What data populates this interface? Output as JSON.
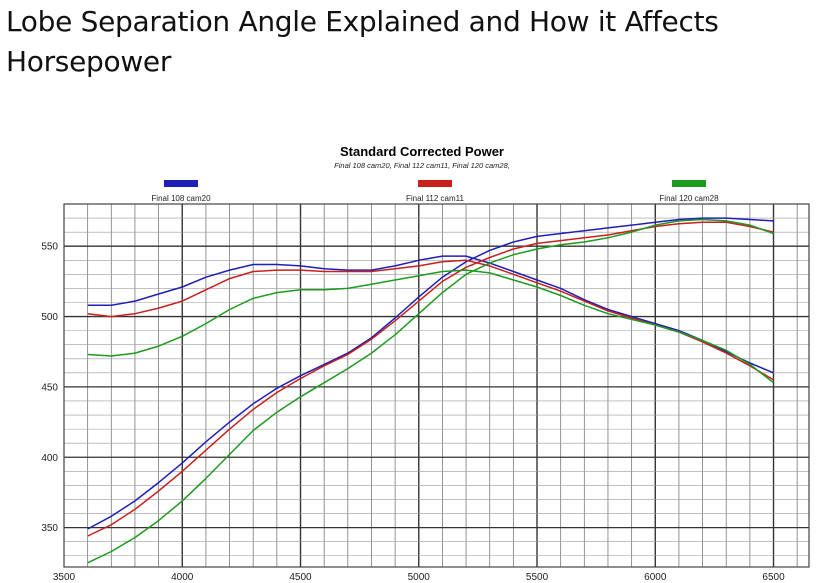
{
  "article": {
    "title": "Lobe Separation Angle Explained and How it Affects Horsepower"
  },
  "chart_data": {
    "type": "line",
    "title": "Standard Corrected Power",
    "subtitle": "Final 108 cam20, Final 112 cam11, Final 120 cam28,",
    "xlabel": "",
    "ylabel": "",
    "xlim": [
      3500,
      6650
    ],
    "ylim": [
      322,
      580
    ],
    "xticks": [
      3500,
      4000,
      4500,
      5000,
      5500,
      6000,
      6500
    ],
    "yticks": [
      350,
      400,
      450,
      500,
      550
    ],
    "grid": true,
    "legend_position": "top",
    "series": [
      {
        "name": "Final 108 cam20",
        "color": "#1f1fb8",
        "x": [
          3600,
          3700,
          3800,
          3900,
          4000,
          4100,
          4200,
          4300,
          4400,
          4500,
          4600,
          4700,
          4800,
          4900,
          5000,
          5100,
          5200,
          5300,
          5400,
          5500,
          5600,
          5700,
          5800,
          5900,
          6000,
          6100,
          6200,
          6300,
          6400,
          6500
        ],
        "torque": [
          508,
          508,
          511,
          516,
          521,
          528,
          533,
          537,
          537,
          536,
          534,
          533,
          533,
          536,
          540,
          543,
          543,
          538,
          532,
          526,
          520,
          512,
          505,
          500,
          495,
          490,
          483,
          475,
          467,
          460
        ],
        "power": [
          349,
          358,
          369,
          382,
          396,
          411,
          425,
          438,
          449,
          458,
          466,
          474,
          485,
          499,
          514,
          528,
          539,
          547,
          553,
          557,
          559,
          561,
          563,
          565,
          567,
          569,
          570,
          570,
          569,
          568
        ]
      },
      {
        "name": "Final 112 cam11",
        "color": "#c8201e",
        "x": [
          3600,
          3700,
          3800,
          3900,
          4000,
          4100,
          4200,
          4300,
          4400,
          4500,
          4600,
          4700,
          4800,
          4900,
          5000,
          5100,
          5200,
          5300,
          5400,
          5500,
          5600,
          5700,
          5800,
          5900,
          6000,
          6100,
          6200,
          6300,
          6400,
          6500
        ],
        "torque": [
          502,
          500,
          502,
          506,
          511,
          519,
          527,
          532,
          533,
          533,
          532,
          532,
          532,
          534,
          536,
          539,
          540,
          536,
          530,
          524,
          518,
          511,
          504,
          499,
          494,
          489,
          482,
          474,
          465,
          455
        ],
        "power": [
          344,
          352,
          363,
          376,
          390,
          405,
          420,
          434,
          446,
          456,
          465,
          473,
          484,
          497,
          511,
          525,
          535,
          542,
          548,
          552,
          554,
          556,
          558,
          561,
          564,
          566,
          567,
          567,
          564,
          560
        ]
      },
      {
        "name": "Final 120 cam28",
        "color": "#1e9a1e",
        "x": [
          3600,
          3700,
          3800,
          3900,
          4000,
          4100,
          4200,
          4300,
          4400,
          4500,
          4600,
          4700,
          4800,
          4900,
          5000,
          5100,
          5200,
          5300,
          5400,
          5500,
          5600,
          5700,
          5800,
          5900,
          6000,
          6100,
          6200,
          6300,
          6400,
          6500
        ],
        "torque": [
          473,
          472,
          474,
          479,
          486,
          495,
          505,
          513,
          517,
          519,
          519,
          520,
          523,
          526,
          529,
          532,
          533,
          531,
          526,
          521,
          515,
          508,
          502,
          498,
          494,
          489,
          483,
          476,
          466,
          453
        ],
        "power": [
          325,
          333,
          343,
          355,
          369,
          385,
          402,
          419,
          432,
          443,
          453,
          463,
          474,
          487,
          502,
          517,
          530,
          538,
          544,
          548,
          551,
          553,
          556,
          560,
          565,
          568,
          569,
          568,
          565,
          559
        ]
      }
    ]
  }
}
